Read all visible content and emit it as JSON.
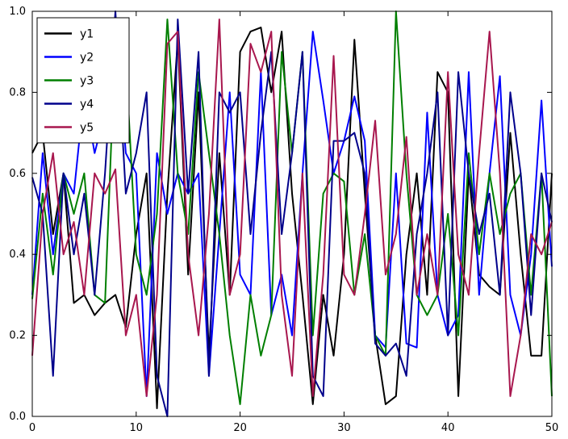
{
  "chart_data": {
    "type": "line",
    "title": "",
    "xlabel": "",
    "ylabel": "",
    "xlim": [
      0,
      50
    ],
    "ylim": [
      0.0,
      1.0
    ],
    "xticks": [
      0,
      10,
      20,
      30,
      40,
      50
    ],
    "yticks": [
      0.0,
      0.2,
      0.4,
      0.6,
      0.8,
      1.0
    ],
    "grid": false,
    "legend_position": "upper-left",
    "background_color": "#ffffff",
    "axis_color": "#000000",
    "series": [
      {
        "name": "y1",
        "color": "#000000",
        "values": [
          0.65,
          0.7,
          0.45,
          0.6,
          0.28,
          0.3,
          0.25,
          0.28,
          0.3,
          0.22,
          0.45,
          0.6,
          0.02,
          0.55,
          0.93,
          0.35,
          0.8,
          0.15,
          0.65,
          0.3,
          0.9,
          0.95,
          0.96,
          0.8,
          0.95,
          0.55,
          0.3,
          0.03,
          0.3,
          0.15,
          0.4,
          0.93,
          0.55,
          0.2,
          0.03,
          0.05,
          0.4,
          0.6,
          0.3,
          0.85,
          0.8,
          0.05,
          0.6,
          0.35,
          0.32,
          0.3,
          0.7,
          0.4,
          0.15,
          0.15,
          0.6
        ]
      },
      {
        "name": "y2",
        "color": "#0000ff",
        "values": [
          0.3,
          0.65,
          0.4,
          0.6,
          0.55,
          0.8,
          0.65,
          0.75,
          0.99,
          0.65,
          0.6,
          0.05,
          0.65,
          0.5,
          0.6,
          0.55,
          0.6,
          0.1,
          0.45,
          0.8,
          0.35,
          0.3,
          0.85,
          0.25,
          0.35,
          0.2,
          0.6,
          0.95,
          0.78,
          0.6,
          0.68,
          0.79,
          0.68,
          0.2,
          0.17,
          0.6,
          0.18,
          0.17,
          0.75,
          0.3,
          0.2,
          0.25,
          0.85,
          0.3,
          0.6,
          0.84,
          0.3,
          0.2,
          0.4,
          0.78,
          0.37
        ]
      },
      {
        "name": "y3",
        "color": "#007f00",
        "values": [
          0.29,
          0.55,
          0.35,
          0.6,
          0.5,
          0.6,
          0.3,
          0.28,
          0.94,
          0.88,
          0.4,
          0.3,
          0.5,
          0.98,
          0.6,
          0.45,
          0.85,
          0.65,
          0.45,
          0.2,
          0.03,
          0.3,
          0.15,
          0.25,
          0.9,
          0.65,
          0.9,
          0.2,
          0.55,
          0.6,
          0.58,
          0.3,
          0.45,
          0.2,
          0.15,
          1.0,
          0.6,
          0.3,
          0.25,
          0.3,
          0.5,
          0.2,
          0.65,
          0.4,
          0.6,
          0.45,
          0.55,
          0.6,
          0.3,
          0.6,
          0.05
        ]
      },
      {
        "name": "y4",
        "color": "#00008b",
        "values": [
          0.59,
          0.5,
          0.1,
          0.6,
          0.4,
          0.55,
          0.3,
          0.6,
          1.0,
          0.55,
          0.65,
          0.8,
          0.1,
          0.0,
          0.98,
          0.55,
          0.9,
          0.1,
          0.8,
          0.75,
          0.8,
          0.45,
          0.7,
          0.9,
          0.45,
          0.65,
          0.9,
          0.1,
          0.05,
          0.68,
          0.68,
          0.7,
          0.6,
          0.18,
          0.15,
          0.18,
          0.1,
          0.45,
          0.6,
          0.8,
          0.2,
          0.85,
          0.6,
          0.45,
          0.55,
          0.3,
          0.8,
          0.6,
          0.25,
          0.6,
          0.48
        ]
      },
      {
        "name": "y5",
        "color": "#a8174e",
        "values": [
          0.15,
          0.5,
          0.65,
          0.4,
          0.48,
          0.3,
          0.6,
          0.55,
          0.61,
          0.2,
          0.3,
          0.05,
          0.3,
          0.92,
          0.95,
          0.4,
          0.2,
          0.5,
          0.98,
          0.3,
          0.4,
          0.92,
          0.85,
          0.95,
          0.3,
          0.1,
          0.6,
          0.05,
          0.35,
          0.89,
          0.35,
          0.3,
          0.5,
          0.73,
          0.35,
          0.45,
          0.69,
          0.3,
          0.45,
          0.3,
          0.85,
          0.4,
          0.3,
          0.65,
          0.95,
          0.6,
          0.05,
          0.2,
          0.45,
          0.4,
          0.48
        ]
      }
    ]
  }
}
